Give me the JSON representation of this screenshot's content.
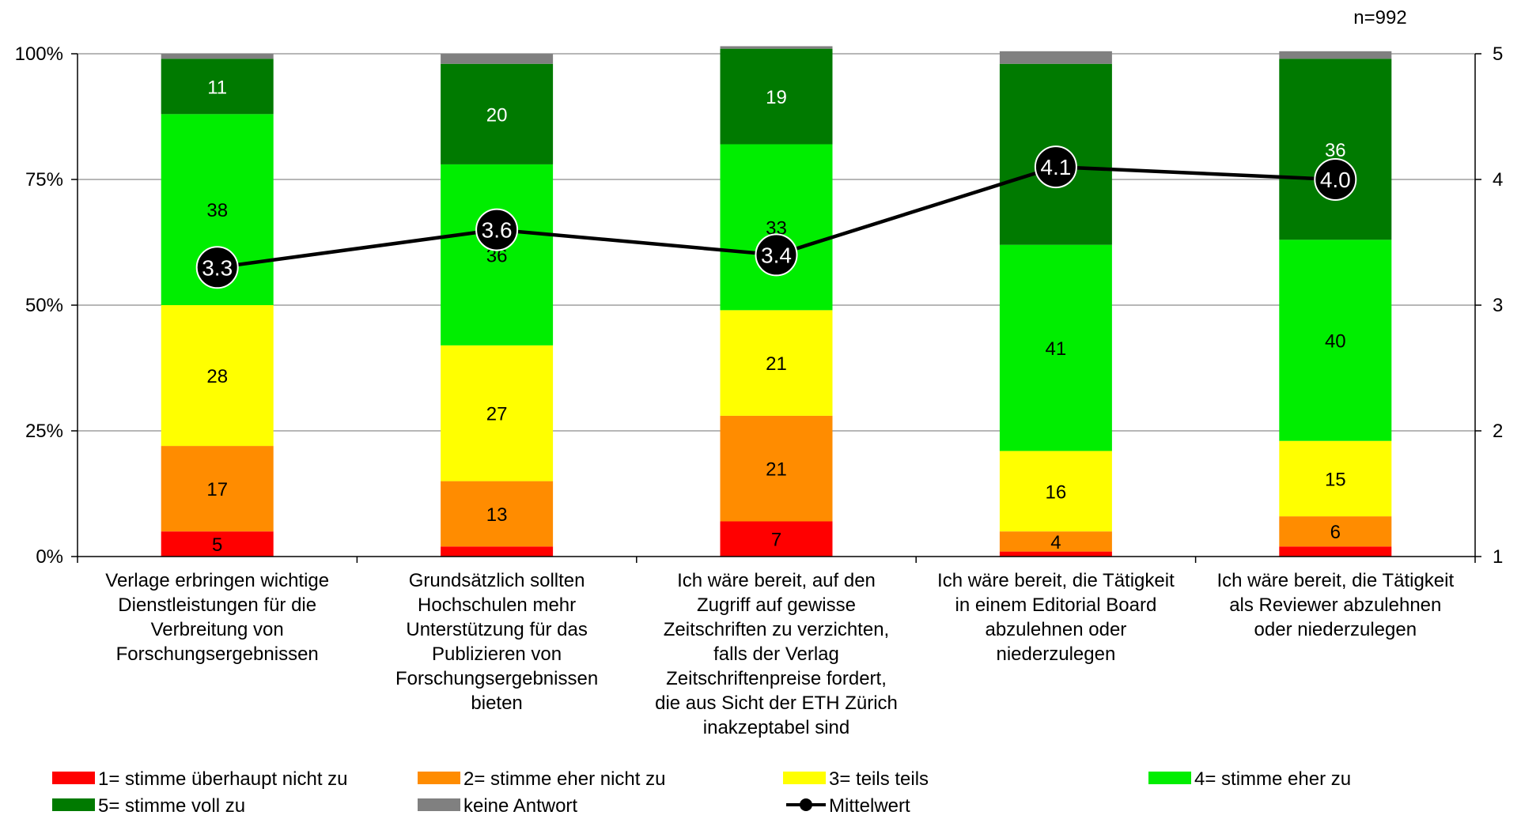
{
  "chart_data": {
    "type": "bar",
    "stacked": true,
    "note": "n=992",
    "categories": [
      [
        "Verlage erbringen wichtige",
        "Dienstleistungen für die",
        "Verbreitung von",
        "Forschungsergebnissen"
      ],
      [
        "Grundsätzlich sollten",
        "Hochschulen mehr",
        "Unterstützung für das",
        "Publizieren von",
        "Forschungsergebnissen",
        "bieten"
      ],
      [
        "Ich wäre bereit, auf den",
        "Zugriff auf gewisse",
        "Zeitschriften zu verzichten,",
        "falls der Verlag",
        "Zeitschriftenpreise fordert,",
        "die aus Sicht der ETH Zürich",
        "inakzeptabel sind"
      ],
      [
        "Ich wäre bereit, die Tätigkeit",
        "in einem Editorial Board",
        "abzulehnen oder",
        "niederzulegen"
      ],
      [
        "Ich wäre bereit, die Tätigkeit",
        "als Reviewer abzulehnen",
        "oder niederzulegen"
      ]
    ],
    "series": [
      {
        "name": "1= stimme überhaupt nicht zu",
        "color": "#ff0000",
        "values": [
          5,
          2,
          7,
          1,
          2
        ],
        "labels": [
          "5",
          "",
          "7",
          "",
          ""
        ]
      },
      {
        "name": "2= stimme eher nicht zu",
        "color": "#ff8c00",
        "values": [
          17,
          13,
          21,
          4,
          6
        ],
        "labels": [
          "17",
          "13",
          "21",
          "4",
          "6"
        ]
      },
      {
        "name": "3= teils teils",
        "color": "#ffff00",
        "values": [
          28,
          27,
          21,
          16,
          15
        ],
        "labels": [
          "28",
          "27",
          "21",
          "16",
          "15"
        ]
      },
      {
        "name": "4= stimme eher zu",
        "color": "#00ee00",
        "values": [
          38,
          36,
          33,
          41,
          40
        ],
        "labels": [
          "38",
          "36",
          "33",
          "41",
          "40"
        ]
      },
      {
        "name": "5= stimme voll zu",
        "color": "#007a00",
        "values": [
          11,
          20,
          19,
          36,
          36
        ],
        "labels": [
          "11",
          "20",
          "19",
          "36",
          "36"
        ]
      },
      {
        "name": "keine Antwort",
        "color": "#808080",
        "values": [
          1,
          2,
          0.5,
          2.5,
          1.5
        ],
        "labels": [
          "",
          "",
          "",
          "",
          ""
        ]
      }
    ],
    "line_series": {
      "name": "Mittelwert",
      "color": "#000000",
      "values": [
        3.3,
        3.6,
        3.4,
        4.1,
        4.0
      ],
      "labels": [
        "3.3",
        "3.6",
        "3.4",
        "4.1",
        "4.0"
      ]
    },
    "y_left": {
      "min": 0,
      "max": 100,
      "ticks": [
        "0%",
        "25%",
        "50%",
        "75%",
        "100%"
      ],
      "tick_values": [
        0,
        25,
        50,
        75,
        100
      ]
    },
    "y_right": {
      "min": 1,
      "max": 5,
      "ticks": [
        "1",
        "2",
        "3",
        "4",
        "5"
      ],
      "tick_values": [
        1,
        2,
        3,
        4,
        5
      ]
    },
    "grid": true,
    "legend_position": "bottom"
  }
}
